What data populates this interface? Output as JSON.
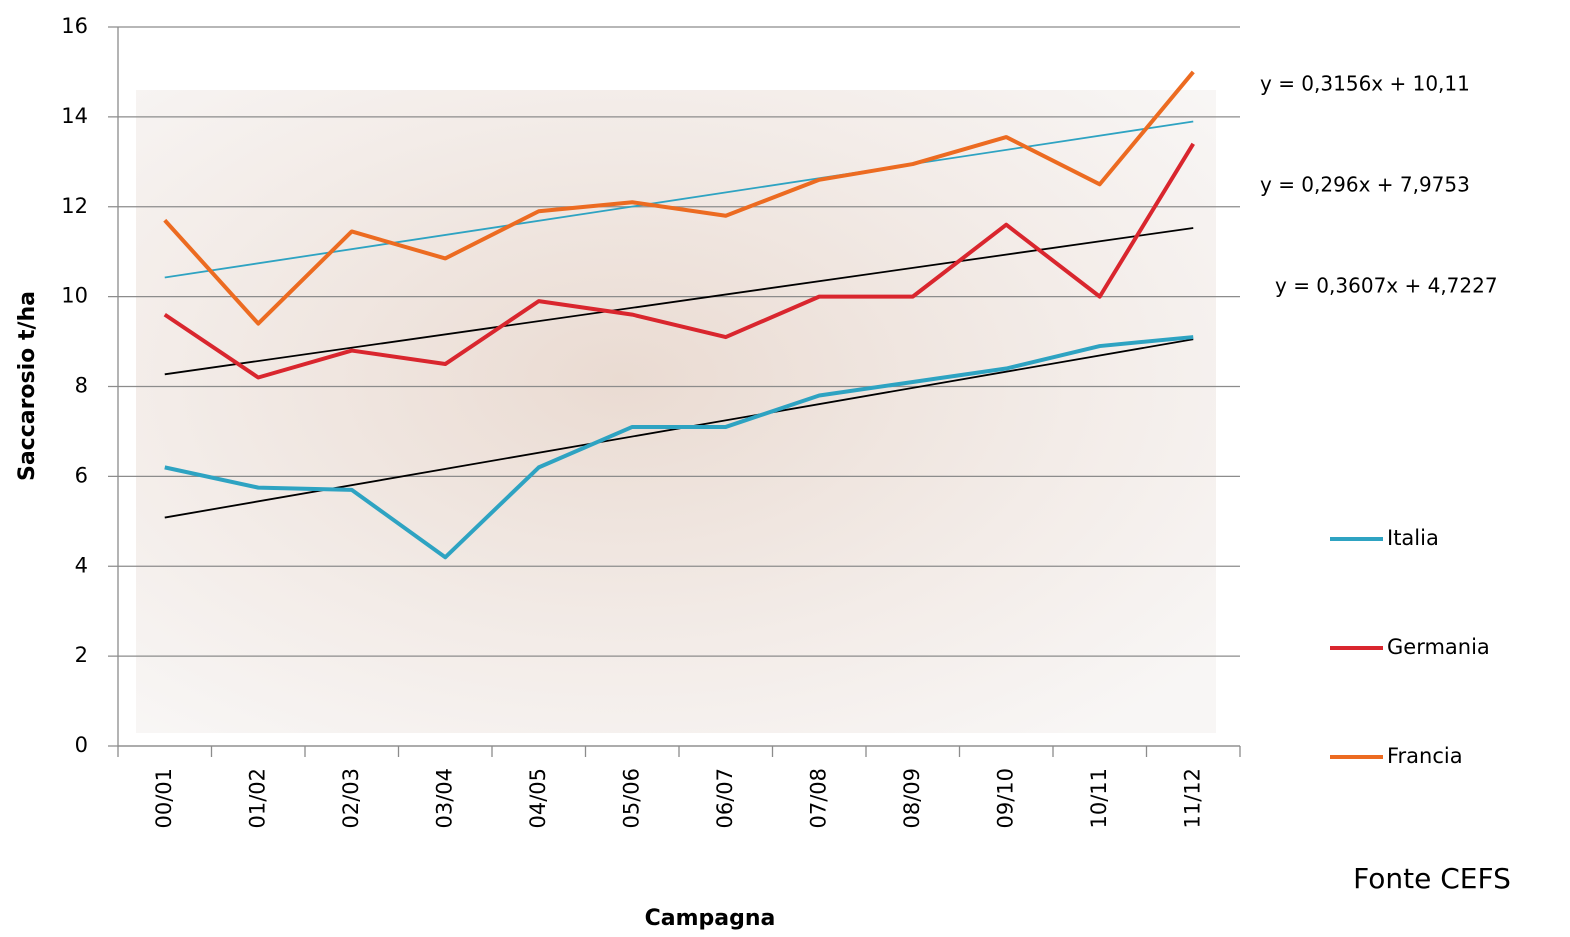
{
  "chart_data": {
    "type": "line",
    "y_label": "Saccarosio  t/ha",
    "x_label": "Campagna",
    "source": "Fonte CEFS",
    "categories": [
      "00/01",
      "01/02",
      "02/03",
      "03/04",
      "04/05",
      "05/06",
      "06/07",
      "07/08",
      "08/09",
      "09/10",
      "10/11",
      "11/12"
    ],
    "ylim": [
      0,
      16
    ],
    "yticks": [
      0,
      2,
      4,
      6,
      8,
      10,
      12,
      14,
      16
    ],
    "grid": true,
    "legend": "right",
    "series": [
      {
        "name": "Italia",
        "color": "#2ea3c2",
        "values": [
          6.2,
          5.75,
          5.7,
          4.2,
          6.2,
          7.1,
          7.1,
          7.8,
          8.1,
          8.4,
          8.9,
          9.1
        ],
        "trendline": {
          "slope": 0.3607,
          "intercept": 4.7227,
          "label": "y = 0,3607x + 4,7227",
          "color": "#000000"
        }
      },
      {
        "name": "Germania",
        "color": "#d9262e",
        "values": [
          9.6,
          8.2,
          8.8,
          8.5,
          9.9,
          9.6,
          9.1,
          10.0,
          10.0,
          11.6,
          10.0,
          13.4
        ],
        "trendline": {
          "slope": 0.296,
          "intercept": 7.9753,
          "label": "y = 0,296x + 7,9753",
          "color": "#000000"
        }
      },
      {
        "name": "Francia",
        "color": "#ec6b21",
        "values": [
          11.7,
          9.4,
          11.45,
          10.85,
          11.9,
          12.1,
          11.8,
          12.6,
          12.95,
          13.55,
          12.5,
          15.0
        ],
        "trendline": {
          "slope": 0.3156,
          "intercept": 10.11,
          "label": "y = 0,3156x + 10,11",
          "color": "#2ea3c2"
        }
      }
    ]
  }
}
